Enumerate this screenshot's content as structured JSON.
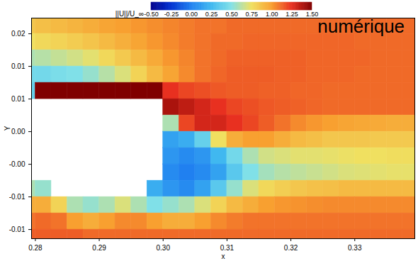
{
  "chart_data": {
    "type": "heatmap",
    "x_label": "x",
    "y_label": "Y",
    "xlim": [
      0.2794,
      0.3394
    ],
    "ylim": [
      -0.0114,
      0.0224
    ],
    "xticks": [
      0.28,
      0.29,
      {
        "value": 0.3,
        "label": "0.30"
      },
      0.31,
      0.32,
      0.33
    ],
    "yticks": [
      0.02,
      {
        "value": 0.015,
        "label": "0.01"
      },
      0.01,
      {
        "value": 0.005,
        "label": "0.00"
      },
      {
        "value": 0,
        "label": "-0.00"
      },
      {
        "value": -0.005,
        "label": "-0.01"
      },
      -0.01
    ],
    "annotations": [
      {
        "text": "numérique",
        "x": 0.3378,
        "y": 0.0211
      }
    ],
    "x_edges": [
      0.2775,
      0.28,
      0.2825,
      0.285,
      0.2875,
      0.29,
      0.2925,
      0.295,
      0.2975,
      0.3,
      0.3025,
      0.305,
      0.3075,
      0.31,
      0.3125,
      0.315,
      0.3175,
      0.32,
      0.3225,
      0.325,
      0.3275,
      0.33,
      0.3325,
      0.335,
      0.3375,
      0.34
    ],
    "y_edges": [
      0.0225,
      0.02,
      0.0175,
      0.015,
      0.0125,
      0.01,
      0.0075,
      0.005,
      0.0025,
      0,
      -0.0025,
      -0.005,
      -0.0075,
      -0.01,
      -0.0125
    ],
    "values": [
      [
        0.85,
        0.88,
        0.9,
        0.92,
        0.95,
        0.98,
        1.0,
        1.02,
        1.04,
        1.06,
        1.08,
        1.1,
        1.1,
        1.12,
        1.12,
        1.12,
        1.12,
        1.12,
        1.12,
        1.12,
        1.12,
        1.12,
        1.12,
        1.12,
        1.12
      ],
      [
        0.75,
        0.78,
        0.8,
        0.83,
        0.86,
        0.9,
        0.94,
        0.98,
        1.02,
        1.05,
        1.08,
        1.1,
        1.12,
        1.12,
        1.13,
        1.13,
        1.13,
        1.13,
        1.13,
        1.13,
        1.13,
        1.12,
        1.12,
        1.12,
        1.12
      ],
      [
        0.6,
        0.62,
        0.65,
        0.68,
        0.72,
        0.78,
        0.84,
        0.9,
        0.96,
        1.02,
        1.06,
        1.1,
        1.12,
        1.14,
        1.14,
        1.14,
        1.14,
        1.14,
        1.13,
        1.13,
        1.13,
        1.13,
        1.12,
        1.12,
        1.12
      ],
      [
        0.45,
        0.45,
        0.48,
        0.5,
        0.55,
        0.62,
        0.7,
        0.8,
        0.9,
        0.98,
        1.05,
        1.1,
        1.13,
        1.15,
        1.15,
        1.15,
        1.14,
        1.14,
        1.13,
        1.13,
        1.13,
        1.12,
        1.12,
        1.12,
        1.12
      ],
      [
        0.4,
        1.5,
        1.5,
        1.5,
        1.5,
        1.5,
        1.5,
        1.5,
        1.5,
        1.25,
        1.2,
        1.18,
        1.16,
        1.15,
        1.15,
        1.14,
        1.14,
        1.13,
        1.13,
        1.12,
        1.12,
        1.12,
        1.12,
        1.12,
        1.12
      ],
      [
        null,
        null,
        null,
        null,
        null,
        null,
        null,
        null,
        null,
        1.4,
        1.35,
        1.3,
        1.25,
        1.2,
        1.18,
        1.16,
        1.15,
        1.14,
        1.13,
        1.12,
        1.12,
        1.12,
        1.12,
        1.12,
        1.12
      ],
      [
        null,
        null,
        null,
        null,
        null,
        null,
        null,
        null,
        null,
        0.6,
        1.2,
        1.3,
        1.3,
        1.25,
        1.2,
        1.15,
        1.1,
        1.05,
        1.02,
        1.0,
        0.98,
        0.97,
        0.96,
        0.95,
        0.95
      ],
      [
        null,
        null,
        null,
        null,
        null,
        null,
        null,
        null,
        null,
        0.15,
        0.2,
        0.4,
        0.75,
        0.95,
        1.0,
        1.0,
        0.95,
        0.9,
        0.88,
        0.85,
        0.85,
        0.85,
        0.84,
        0.84,
        0.84
      ],
      [
        null,
        null,
        null,
        null,
        null,
        null,
        null,
        null,
        null,
        0.1,
        0.05,
        0.1,
        0.25,
        0.45,
        0.6,
        0.68,
        0.7,
        0.72,
        0.72,
        0.73,
        0.74,
        0.75,
        0.75,
        0.76,
        0.76
      ],
      [
        null,
        null,
        null,
        null,
        null,
        null,
        null,
        null,
        null,
        0.05,
        0,
        0.05,
        0.15,
        0.35,
        0.5,
        0.58,
        0.62,
        0.64,
        0.66,
        0.68,
        0.7,
        0.71,
        0.72,
        0.73,
        0.73
      ],
      [
        0.6,
        0.55,
        null,
        null,
        null,
        null,
        null,
        null,
        0.2,
        0.1,
        0.05,
        0.15,
        0.35,
        0.55,
        0.7,
        0.78,
        0.82,
        0.85,
        0.87,
        0.88,
        0.9,
        0.9,
        0.9,
        0.9,
        0.9
      ],
      [
        0.95,
        0.95,
        0.8,
        0.6,
        0.55,
        0.6,
        0.7,
        0.6,
        0.5,
        0.55,
        0.6,
        0.7,
        0.8,
        0.9,
        0.95,
        1.0,
        1.02,
        1.03,
        1.04,
        1.05,
        1.05,
        1.05,
        1.05,
        1.05,
        1.05
      ],
      [
        1.1,
        1.12,
        1.1,
        1.0,
        0.95,
        1.0,
        1.05,
        1.05,
        1.0,
        0.95,
        0.95,
        1.0,
        1.05,
        1.08,
        1.1,
        1.1,
        1.1,
        1.1,
        1.1,
        1.1,
        1.1,
        1.1,
        1.1,
        1.1,
        1.1
      ],
      [
        1.15,
        1.15,
        1.15,
        1.15,
        1.12,
        1.12,
        1.12,
        1.12,
        1.12,
        1.12,
        1.12,
        1.12,
        1.12,
        1.12,
        1.12,
        1.12,
        1.12,
        1.12,
        1.12,
        1.12,
        1.12,
        1.12,
        1.12,
        1.12,
        1.12
      ]
    ],
    "colorbar": {
      "label": "||U||/U_∞",
      "range": [
        -0.5,
        1.5
      ],
      "ticks": [
        {
          "value": -0.5,
          "label": "-0.50"
        },
        {
          "value": -0.25,
          "label": "-0.25"
        },
        {
          "value": 0,
          "label": "0.00"
        },
        {
          "value": 0.25,
          "label": "0.25"
        },
        {
          "value": 0.5,
          "label": "0.50"
        },
        {
          "value": 0.75,
          "label": "0.75"
        },
        {
          "value": 1,
          "label": "1.00"
        },
        {
          "value": 1.25,
          "label": "1.25"
        },
        {
          "value": 1.5,
          "label": "1.50"
        }
      ]
    }
  }
}
